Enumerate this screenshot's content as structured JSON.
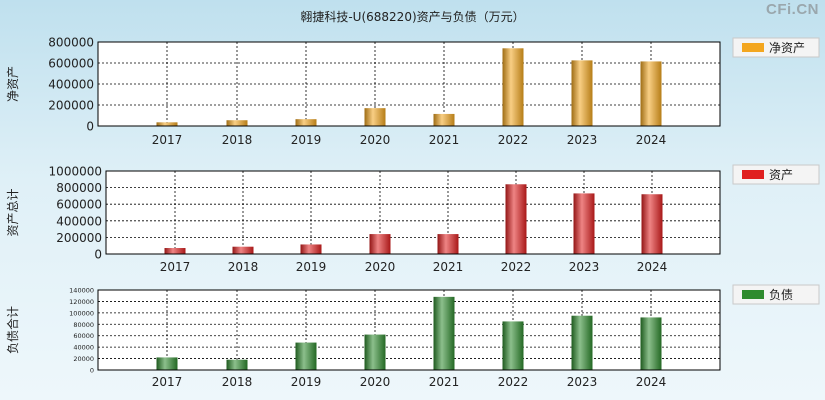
{
  "title": "翱捷科技-U(688220)资产与负债（万元）",
  "watermark": "CFi.CN",
  "chart_data": [
    {
      "type": "bar",
      "ylabel": "净资产",
      "legend": "净资产",
      "color": "#f3a61f",
      "categories": [
        "2017",
        "2018",
        "2019",
        "2020",
        "2021",
        "2022",
        "2023",
        "2024"
      ],
      "values": [
        35000,
        55000,
        65000,
        170000,
        115000,
        740000,
        625000,
        615000
      ],
      "ylim": [
        0,
        800000
      ],
      "yticks": [
        "0",
        "200000",
        "400000",
        "600000",
        "800000"
      ],
      "grid": true,
      "legend_position": "right"
    },
    {
      "type": "bar",
      "ylabel": "资产总计",
      "legend": "资产",
      "color": "#e02020",
      "categories": [
        "2017",
        "2018",
        "2019",
        "2020",
        "2021",
        "2022",
        "2023",
        "2024"
      ],
      "values": [
        72000,
        88000,
        115000,
        240000,
        240000,
        840000,
        730000,
        720000
      ],
      "ylim": [
        0,
        1000000
      ],
      "yticks": [
        "0",
        "200000",
        "400000",
        "600000",
        "800000",
        "1000000"
      ],
      "grid": true,
      "legend_position": "right"
    },
    {
      "type": "bar",
      "ylabel": "负债合计",
      "legend": "负债",
      "color": "#2e8b2e",
      "categories": [
        "2017",
        "2018",
        "2019",
        "2020",
        "2021",
        "2022",
        "2023",
        "2024"
      ],
      "values": [
        22000,
        18000,
        48000,
        62000,
        128000,
        85000,
        95000,
        92000
      ],
      "ylim": [
        0,
        140000
      ],
      "yticks": [
        "0",
        "20000",
        "40000",
        "60000",
        "80000",
        "100000",
        "120000",
        "140000"
      ],
      "grid": true,
      "legend_position": "right"
    }
  ]
}
